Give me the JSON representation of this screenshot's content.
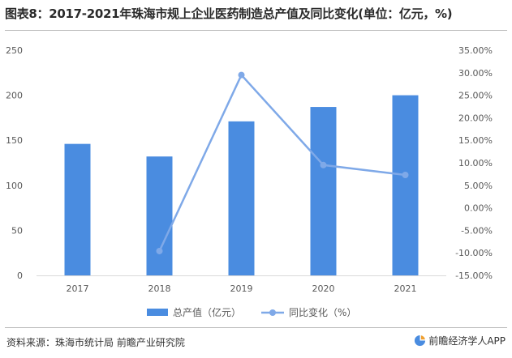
{
  "title": "图表8：2017-2021年珠海市规上企业医药制造总产值及同比变化(单位：亿元，%)",
  "source": "资料来源：珠海市统计局 前瞻产业研究院",
  "brand": "前瞻经济学人APP",
  "colors": {
    "bar": "#4a8ce0",
    "line": "#7fa9e8"
  },
  "chart_data": {
    "type": "bar",
    "categories": [
      "2017",
      "2018",
      "2019",
      "2020",
      "2021"
    ],
    "series": [
      {
        "name": "总产值（亿元）",
        "type": "bar",
        "axis": "left",
        "values": [
          146,
          132,
          171,
          187,
          200
        ]
      },
      {
        "name": "同比变化（%）",
        "type": "line",
        "axis": "right",
        "values": [
          null,
          -9.6,
          29.5,
          9.5,
          7.3
        ]
      }
    ],
    "y_left": {
      "min": 0,
      "max": 250,
      "ticks": [
        "0",
        "50",
        "100",
        "150",
        "200",
        "250"
      ]
    },
    "y_right": {
      "min": -15,
      "max": 35,
      "ticks": [
        "-15.00%",
        "-10.00%",
        "-5.00%",
        "0.00%",
        "5.00%",
        "10.00%",
        "15.00%",
        "20.00%",
        "25.00%",
        "30.00%",
        "35.00%"
      ]
    },
    "grid": false,
    "legend": "bottom-center"
  }
}
